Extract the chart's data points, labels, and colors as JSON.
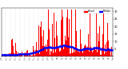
{
  "bar_color": "#FF0000",
  "median_color": "#0000FF",
  "background_color": "#FFFFFF",
  "grid_color": "#999999",
  "ylim": [
    0,
    32
  ],
  "ytick_labels": [
    "5",
    "10",
    "15",
    "20",
    "25",
    "30"
  ],
  "ytick_vals": [
    5,
    10,
    15,
    20,
    25,
    30
  ],
  "n_minutes": 1440,
  "seed": 7,
  "legend_actual": "Actual",
  "legend_median": "Median",
  "figsize": [
    1.6,
    0.87
  ],
  "dpi": 100
}
